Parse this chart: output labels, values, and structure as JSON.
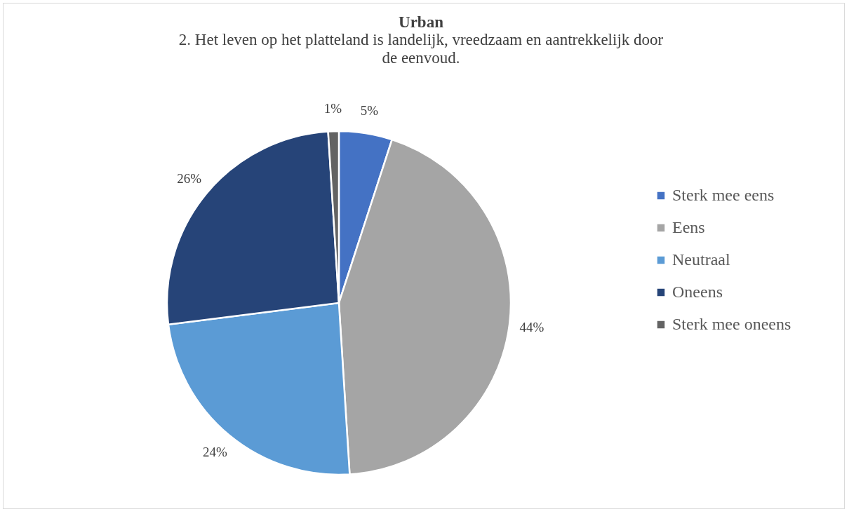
{
  "chart_data": {
    "type": "pie",
    "title": "Urban",
    "subtitle": "2. Het leven op het platteland is landelijk, vreedzaam en aantrekkelijk door de eenvoud.",
    "categories": [
      "Sterk mee eens",
      "Eens",
      "Neutraal",
      "Oneens",
      "Sterk mee oneens"
    ],
    "values": [
      5,
      44,
      24,
      26,
      1
    ],
    "value_labels": [
      "5%",
      "44%",
      "24%",
      "26%",
      "1%"
    ],
    "colors": [
      "#4472c4",
      "#a5a5a5",
      "#5b9bd5",
      "#264478",
      "#636363"
    ],
    "legend": "right"
  }
}
